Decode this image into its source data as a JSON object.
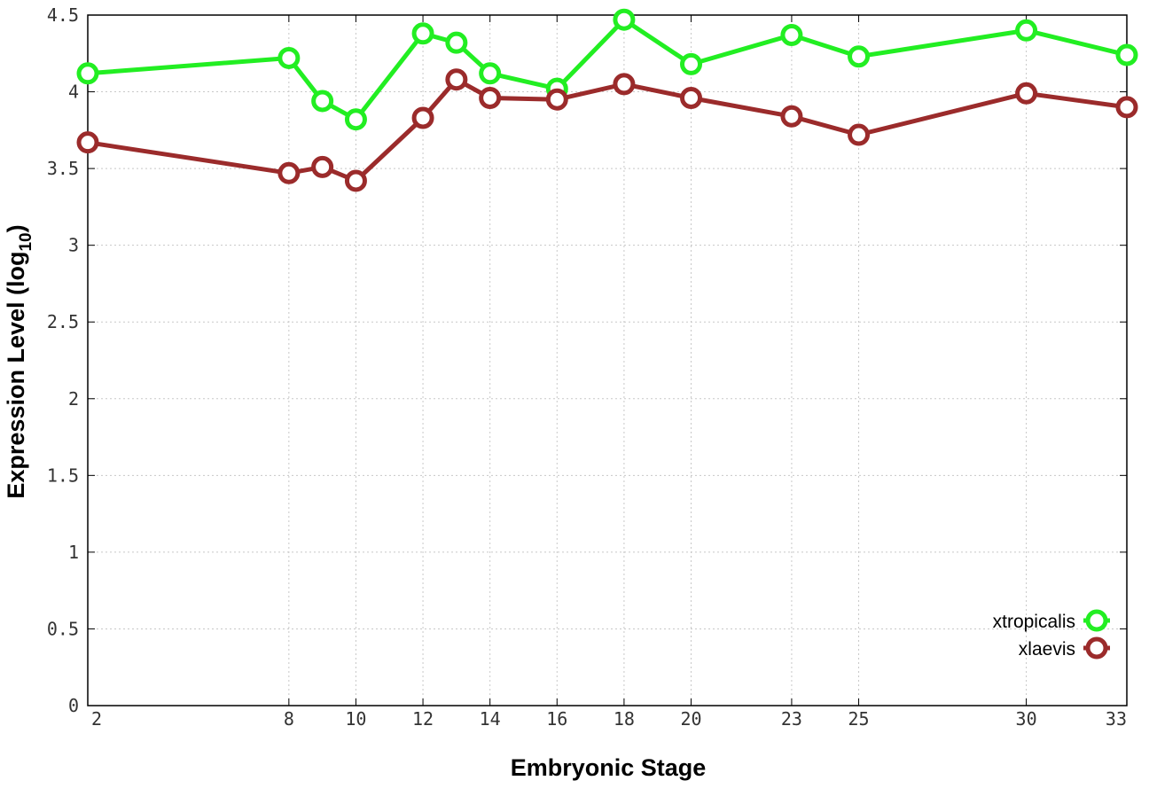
{
  "chart_data": {
    "type": "line",
    "xlabel": "Embryonic Stage",
    "ylabel_main": "Expression Level (log",
    "ylabel_sub": "10",
    "ylabel_close": ")",
    "xlim": [
      2,
      33
    ],
    "ylim": [
      0,
      4.5
    ],
    "x_ticks": [
      2,
      8,
      10,
      12,
      14,
      16,
      18,
      20,
      23,
      25,
      30,
      33
    ],
    "y_ticks": [
      0,
      0.5,
      1,
      1.5,
      2,
      2.5,
      3,
      3.5,
      4,
      4.5
    ],
    "y_tick_labels": [
      "0",
      "0.5",
      "1",
      "1.5",
      "2",
      "2.5",
      "3",
      "3.5",
      "4",
      "4.5"
    ],
    "grid": true,
    "legend_position": "bottom-right",
    "x": [
      2,
      8,
      9,
      10,
      12,
      13,
      14,
      16,
      18,
      20,
      23,
      25,
      30,
      33
    ],
    "series": [
      {
        "name": "xtropicalis",
        "color": "#22ee22",
        "values": [
          4.12,
          4.22,
          3.94,
          3.82,
          4.38,
          4.32,
          4.12,
          4.02,
          4.47,
          4.18,
          4.37,
          4.23,
          4.4,
          4.24
        ]
      },
      {
        "name": "xlaevis",
        "color": "#9b2b2b",
        "values": [
          3.67,
          3.47,
          3.51,
          3.42,
          3.83,
          4.08,
          3.96,
          3.95,
          4.05,
          3.96,
          3.84,
          3.72,
          3.99,
          3.9
        ]
      }
    ]
  }
}
